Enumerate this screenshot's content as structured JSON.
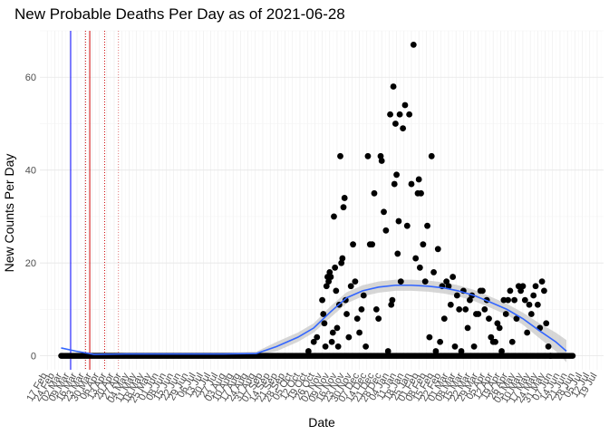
{
  "chart_data": {
    "type": "scatter",
    "title": "New Probable Deaths Per Day as of 2021-06-28",
    "xlabel": "Date",
    "ylabel": "New Counts Per Day",
    "ylim": [
      -3,
      70
    ],
    "xlim": [
      "2020-02-10",
      "2021-07-25"
    ],
    "y_ticks": [
      0,
      20,
      40,
      60
    ],
    "grid": true,
    "x_tick_labels": [
      "17 Feb",
      "24 Feb",
      "02 Mar",
      "09 Mar",
      "16 Mar",
      "23 Mar",
      "30 Mar",
      "06 Apr",
      "13 Apr",
      "20 Apr",
      "27 Apr",
      "04 May",
      "11 May",
      "18 May",
      "25 May",
      "01 Jun",
      "08 Jun",
      "15 Jun",
      "22 Jun",
      "29 Jun",
      "06 Jul",
      "13 Jul",
      "20 Jul",
      "27 Jul",
      "03 Aug",
      "10 Aug",
      "17 Aug",
      "24 Aug",
      "31 Aug",
      "07 Sep",
      "14 Sep",
      "21 Sep",
      "28 Sep",
      "05 Oct",
      "12 Oct",
      "19 Oct",
      "26 Oct",
      "02 Nov",
      "09 Nov",
      "16 Nov",
      "23 Nov",
      "30 Nov",
      "07 Dec",
      "14 Dec",
      "21 Dec",
      "28 Dec",
      "04 Jan",
      "11 Jan",
      "18 Jan",
      "25 Jan",
      "01 Feb",
      "08 Feb",
      "15 Feb",
      "22 Feb",
      "01 Mar",
      "08 Mar",
      "15 Mar",
      "22 Mar",
      "29 Mar",
      "05 Apr",
      "12 Apr",
      "19 Apr",
      "26 Apr",
      "03 May",
      "10 May",
      "17 May",
      "24 May",
      "31 May",
      "07 Jun",
      "14 Jun",
      "21 Jun",
      "28 Jun",
      "05 Jul",
      "12 Jul",
      "19 Jul"
    ],
    "vlines": [
      {
        "date": "2020-03-10",
        "color": "#0000ff",
        "style": "solid"
      },
      {
        "date": "2020-03-24",
        "color": "#cc0000",
        "style": "dotted"
      },
      {
        "date": "2020-03-28",
        "color": "#cc0000",
        "style": "solid"
      },
      {
        "date": "2020-04-11",
        "color": "#cc0000",
        "style": "dotted"
      },
      {
        "date": "2020-04-24",
        "color": "#cc0000",
        "style": "dotted-light"
      }
    ],
    "smooth": {
      "color": "#3366ff",
      "band_color": "#c8c8c8",
      "x": [
        "2020-03-01",
        "2020-03-15",
        "2020-04-01",
        "2020-05-01",
        "2020-06-01",
        "2020-07-01",
        "2020-08-01",
        "2020-09-01",
        "2020-09-20",
        "2020-10-10",
        "2020-10-25",
        "2020-11-10",
        "2020-11-25",
        "2020-12-10",
        "2020-12-25",
        "2021-01-10",
        "2021-01-25",
        "2021-02-10",
        "2021-02-25",
        "2021-03-10",
        "2021-03-25",
        "2021-04-10",
        "2021-04-25",
        "2021-05-10",
        "2021-05-25",
        "2021-06-10",
        "2021-06-20"
      ],
      "y": [
        1.7,
        1.0,
        0.3,
        0.4,
        0.4,
        0.4,
        0.4,
        0.5,
        2.0,
        4.0,
        6.0,
        9.5,
        12.5,
        14.0,
        14.8,
        15.2,
        15.2,
        15.0,
        14.6,
        14.0,
        13.0,
        11.5,
        10.0,
        8.0,
        5.5,
        3.0,
        1.0
      ],
      "band": [
        0,
        0,
        0.4,
        0.3,
        0.3,
        0.3,
        0.3,
        0.4,
        1.0,
        1.0,
        1.0,
        1.2,
        1.2,
        1.2,
        1.2,
        1.2,
        1.2,
        1.2,
        1.2,
        1.2,
        1.2,
        1.2,
        1.2,
        1.3,
        1.6,
        2.0,
        2.4
      ]
    },
    "series": [
      {
        "points": [
          [
            "2020-10-20",
            1
          ],
          [
            "2020-10-25",
            3
          ],
          [
            "2020-10-28",
            4
          ],
          [
            "2020-11-02",
            12
          ],
          [
            "2020-11-03",
            9
          ],
          [
            "2020-11-04",
            7
          ],
          [
            "2020-11-05",
            2
          ],
          [
            "2020-11-06",
            15
          ],
          [
            "2020-11-07",
            17
          ],
          [
            "2020-11-08",
            16
          ],
          [
            "2020-11-09",
            18
          ],
          [
            "2020-11-10",
            17
          ],
          [
            "2020-11-11",
            3
          ],
          [
            "2020-11-12",
            5
          ],
          [
            "2020-11-13",
            30
          ],
          [
            "2020-11-14",
            19
          ],
          [
            "2020-11-15",
            14
          ],
          [
            "2020-11-16",
            6
          ],
          [
            "2020-11-17",
            2
          ],
          [
            "2020-11-18",
            11
          ],
          [
            "2020-11-19",
            43
          ],
          [
            "2020-11-20",
            20
          ],
          [
            "2020-11-21",
            21
          ],
          [
            "2020-11-22",
            32
          ],
          [
            "2020-11-23",
            34
          ],
          [
            "2020-11-24",
            12
          ],
          [
            "2020-11-25",
            9
          ],
          [
            "2020-11-27",
            4
          ],
          [
            "2020-11-29",
            15
          ],
          [
            "2020-12-01",
            24
          ],
          [
            "2020-12-03",
            16
          ],
          [
            "2020-12-05",
            8
          ],
          [
            "2020-12-07",
            5
          ],
          [
            "2020-12-09",
            10
          ],
          [
            "2020-12-11",
            13
          ],
          [
            "2020-12-13",
            2
          ],
          [
            "2020-12-15",
            43
          ],
          [
            "2020-12-17",
            24
          ],
          [
            "2020-12-19",
            24
          ],
          [
            "2020-12-21",
            35
          ],
          [
            "2020-12-23",
            10
          ],
          [
            "2020-12-25",
            8
          ],
          [
            "2020-12-27",
            43
          ],
          [
            "2020-12-28",
            42
          ],
          [
            "2020-12-30",
            31
          ],
          [
            "2021-01-01",
            27
          ],
          [
            "2021-01-03",
            1
          ],
          [
            "2021-01-05",
            52
          ],
          [
            "2021-01-06",
            11
          ],
          [
            "2021-01-07",
            12
          ],
          [
            "2021-01-08",
            58
          ],
          [
            "2021-01-09",
            37
          ],
          [
            "2021-01-10",
            50
          ],
          [
            "2021-01-11",
            39
          ],
          [
            "2021-01-12",
            22
          ],
          [
            "2021-01-13",
            29
          ],
          [
            "2021-01-14",
            52
          ],
          [
            "2021-01-15",
            16
          ],
          [
            "2021-01-17",
            49
          ],
          [
            "2021-01-19",
            54
          ],
          [
            "2021-01-21",
            28
          ],
          [
            "2021-01-23",
            52
          ],
          [
            "2021-01-25",
            37
          ],
          [
            "2021-01-27",
            67
          ],
          [
            "2021-01-29",
            21
          ],
          [
            "2021-01-31",
            35
          ],
          [
            "2021-02-01",
            38
          ],
          [
            "2021-02-02",
            19
          ],
          [
            "2021-02-03",
            35
          ],
          [
            "2021-02-05",
            24
          ],
          [
            "2021-02-07",
            16
          ],
          [
            "2021-02-09",
            28
          ],
          [
            "2021-02-11",
            4
          ],
          [
            "2021-02-13",
            43
          ],
          [
            "2021-02-15",
            18
          ],
          [
            "2021-02-17",
            1
          ],
          [
            "2021-02-19",
            23
          ],
          [
            "2021-02-21",
            3
          ],
          [
            "2021-02-23",
            15
          ],
          [
            "2021-02-25",
            8
          ],
          [
            "2021-02-27",
            16
          ],
          [
            "2021-03-01",
            15
          ],
          [
            "2021-03-03",
            11
          ],
          [
            "2021-03-05",
            17
          ],
          [
            "2021-03-07",
            2
          ],
          [
            "2021-03-09",
            13
          ],
          [
            "2021-03-11",
            10
          ],
          [
            "2021-03-13",
            1
          ],
          [
            "2021-03-15",
            14
          ],
          [
            "2021-03-17",
            10
          ],
          [
            "2021-03-19",
            6
          ],
          [
            "2021-03-21",
            12
          ],
          [
            "2021-03-23",
            13
          ],
          [
            "2021-03-25",
            2
          ],
          [
            "2021-03-27",
            9
          ],
          [
            "2021-03-29",
            9
          ],
          [
            "2021-03-31",
            14
          ],
          [
            "2021-04-02",
            14
          ],
          [
            "2021-04-04",
            10
          ],
          [
            "2021-04-06",
            12
          ],
          [
            "2021-04-08",
            8
          ],
          [
            "2021-04-10",
            4
          ],
          [
            "2021-04-12",
            3
          ],
          [
            "2021-04-14",
            3
          ],
          [
            "2021-04-16",
            7
          ],
          [
            "2021-04-18",
            6
          ],
          [
            "2021-04-20",
            1
          ],
          [
            "2021-04-22",
            12
          ],
          [
            "2021-04-24",
            9
          ],
          [
            "2021-04-26",
            12
          ],
          [
            "2021-04-28",
            14
          ],
          [
            "2021-04-30",
            3
          ],
          [
            "2021-05-02",
            12
          ],
          [
            "2021-05-04",
            8
          ],
          [
            "2021-05-06",
            15
          ],
          [
            "2021-05-08",
            14
          ],
          [
            "2021-05-10",
            15
          ],
          [
            "2021-05-12",
            12
          ],
          [
            "2021-05-14",
            5
          ],
          [
            "2021-05-16",
            11
          ],
          [
            "2021-05-18",
            9
          ],
          [
            "2021-05-20",
            13
          ],
          [
            "2021-05-22",
            15
          ],
          [
            "2021-05-24",
            11
          ],
          [
            "2021-05-26",
            6
          ],
          [
            "2021-05-28",
            16
          ],
          [
            "2021-05-30",
            14
          ],
          [
            "2021-06-01",
            7
          ],
          [
            "2021-06-03",
            2
          ],
          [
            "2021-06-05",
            0
          ]
        ],
        "zero_runs": [
          [
            "2020-03-01",
            "2021-06-26"
          ]
        ]
      }
    ]
  }
}
